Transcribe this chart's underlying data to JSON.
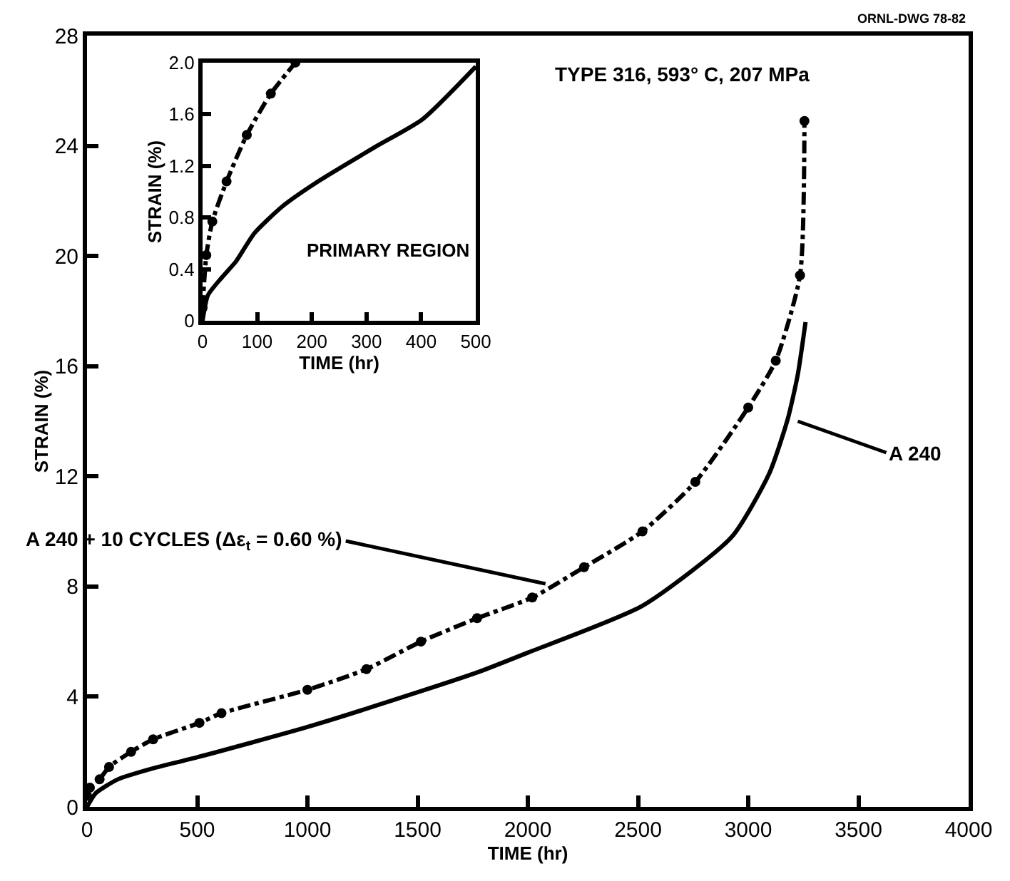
{
  "chart_data": [
    {
      "type": "line",
      "xlabel": "TIME (hr)",
      "ylabel": "STRAIN (%)",
      "legend": false,
      "grid": false,
      "xlim": [
        0,
        4000
      ],
      "xticks": [
        0,
        500,
        1000,
        1500,
        2000,
        2500,
        3000,
        3500,
        4000
      ],
      "ylim": [
        0,
        28
      ],
      "yticks": [
        0,
        4,
        8,
        12,
        16,
        20,
        24,
        28
      ],
      "series": [
        {
          "name": "A 240 + 10 CYCLES (Δε$_{t}$ = 0.60 %)",
          "color": "#000000",
          "marker": "circle",
          "line_style": "dashed",
          "x": [
            0,
            13,
            57,
            100,
            200,
            300,
            510,
            610,
            1000,
            1268,
            1515,
            1770,
            2020,
            2255,
            2520,
            2760,
            3000,
            3125,
            3235,
            3255
          ],
          "values": [
            0.4,
            0.7,
            1.0,
            1.45,
            2.0,
            2.45,
            3.05,
            3.4,
            4.25,
            5.0,
            6.0,
            6.85,
            7.6,
            8.7,
            10.0,
            11.8,
            14.5,
            16.2,
            19.3,
            24.9
          ]
        },
        {
          "name": "A 240",
          "color": "#000000",
          "marker": "none",
          "line_style": "solid",
          "x": [
            0,
            40,
            140,
            300,
            500,
            1000,
            1515,
            1777,
            2000,
            2520,
            2925,
            3095,
            3180,
            3225,
            3260
          ],
          "values": [
            0,
            0.5,
            1.0,
            1.4,
            1.8,
            2.9,
            4.2,
            4.9,
            5.6,
            7.3,
            9.8,
            12.1,
            14.1,
            15.7,
            17.6
          ]
        }
      ],
      "annotations": [
        "ORNL-DWG 78-82",
        "TYPE 316, 593° C, 207 MPa"
      ]
    },
    {
      "type": "line",
      "xlabel": "TIME (hr)",
      "ylabel": "STRAIN (%)",
      "legend": false,
      "grid": false,
      "xlim": [
        0,
        500
      ],
      "xticks": [
        0,
        100,
        200,
        300,
        400,
        500
      ],
      "ylim": [
        0,
        2.0
      ],
      "yticks": [
        0,
        0.4,
        0.8,
        1.2,
        1.6,
        {
          "value": 2.0,
          "label": "2.0"
        }
      ],
      "series": [
        {
          "color": "#000000",
          "marker": "circle",
          "line_style": "dashed",
          "x": [
            0,
            7,
            18,
            44,
            81,
            125,
            170
          ],
          "values": [
            0.1,
            0.51,
            0.77,
            1.08,
            1.44,
            1.76,
            2.0
          ]
        },
        {
          "color": "#000000",
          "marker": "none",
          "line_style": "solid",
          "x": [
            0,
            10,
            36,
            61,
            95,
            147,
            215,
            317,
            402,
            500
          ],
          "values": [
            0,
            0.2,
            0.34,
            0.46,
            0.68,
            0.89,
            1.09,
            1.35,
            1.56,
            1.97
          ]
        }
      ],
      "annotations": [
        "PRIMARY REGION"
      ]
    }
  ]
}
